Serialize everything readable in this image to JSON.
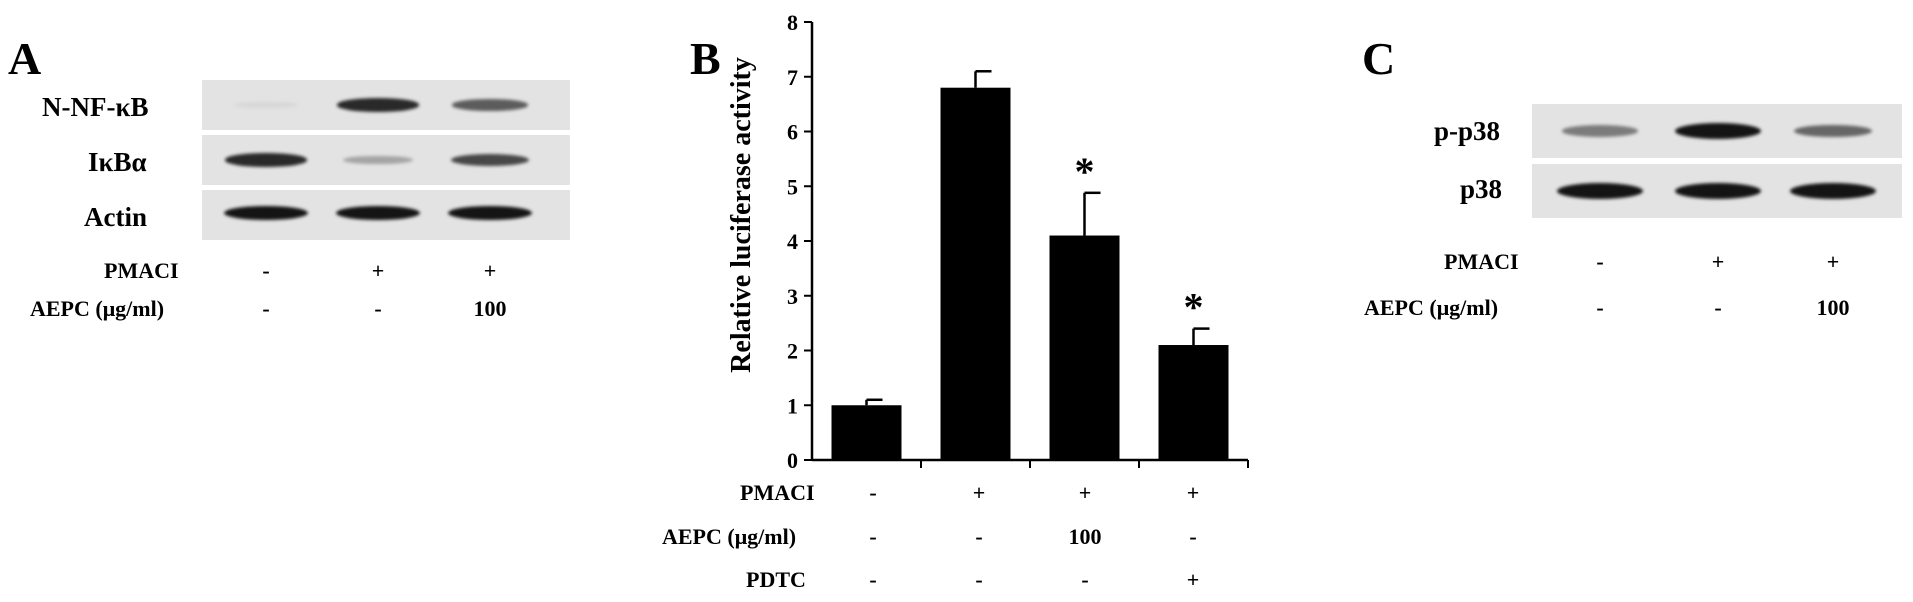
{
  "panel_a": {
    "letter": "A",
    "rows": [
      "N-NF-κB",
      "IκBα",
      "Actin"
    ],
    "conditions": [
      {
        "label": "PMACI",
        "values": [
          "-",
          "+",
          "+"
        ]
      },
      {
        "label": "AEPC (μg/ml)",
        "values": [
          "-",
          "-",
          "100"
        ]
      }
    ],
    "band_intensity": [
      [
        0.05,
        0.9,
        0.65
      ],
      [
        0.9,
        0.3,
        0.75
      ],
      [
        1.0,
        1.0,
        1.0
      ]
    ]
  },
  "panel_c": {
    "letter": "C",
    "rows": [
      "p-p38",
      "p38"
    ],
    "conditions": [
      {
        "label": "PMACI",
        "values": [
          "-",
          "+",
          "+"
        ]
      },
      {
        "label": "AEPC (μg/ml)",
        "values": [
          "-",
          "-",
          "100"
        ]
      }
    ],
    "band_intensity": [
      [
        0.5,
        1.0,
        0.6
      ],
      [
        1.0,
        1.0,
        1.0
      ]
    ]
  },
  "chart_data": {
    "type": "bar",
    "panel_letter": "B",
    "ylabel": "Relative luciferase activity",
    "ylim": [
      0,
      8
    ],
    "yticks": [
      "0",
      "1",
      "2",
      "3",
      "4",
      "5",
      "6",
      "7",
      "8"
    ],
    "values": [
      1.0,
      6.8,
      4.1,
      2.1
    ],
    "errors": [
      0.1,
      0.3,
      0.78,
      0.3
    ],
    "annotations": [
      "",
      "",
      "*",
      "*"
    ],
    "conditions": [
      {
        "label": "PMACI",
        "values": [
          "-",
          "+",
          "+",
          "+"
        ]
      },
      {
        "label": "AEPC (μg/ml)",
        "values": [
          "-",
          "-",
          "100",
          "-"
        ]
      },
      {
        "label": "PDTC",
        "values": [
          "-",
          "-",
          "-",
          "+"
        ]
      }
    ],
    "bar_color": "#000000",
    "grid": false
  }
}
